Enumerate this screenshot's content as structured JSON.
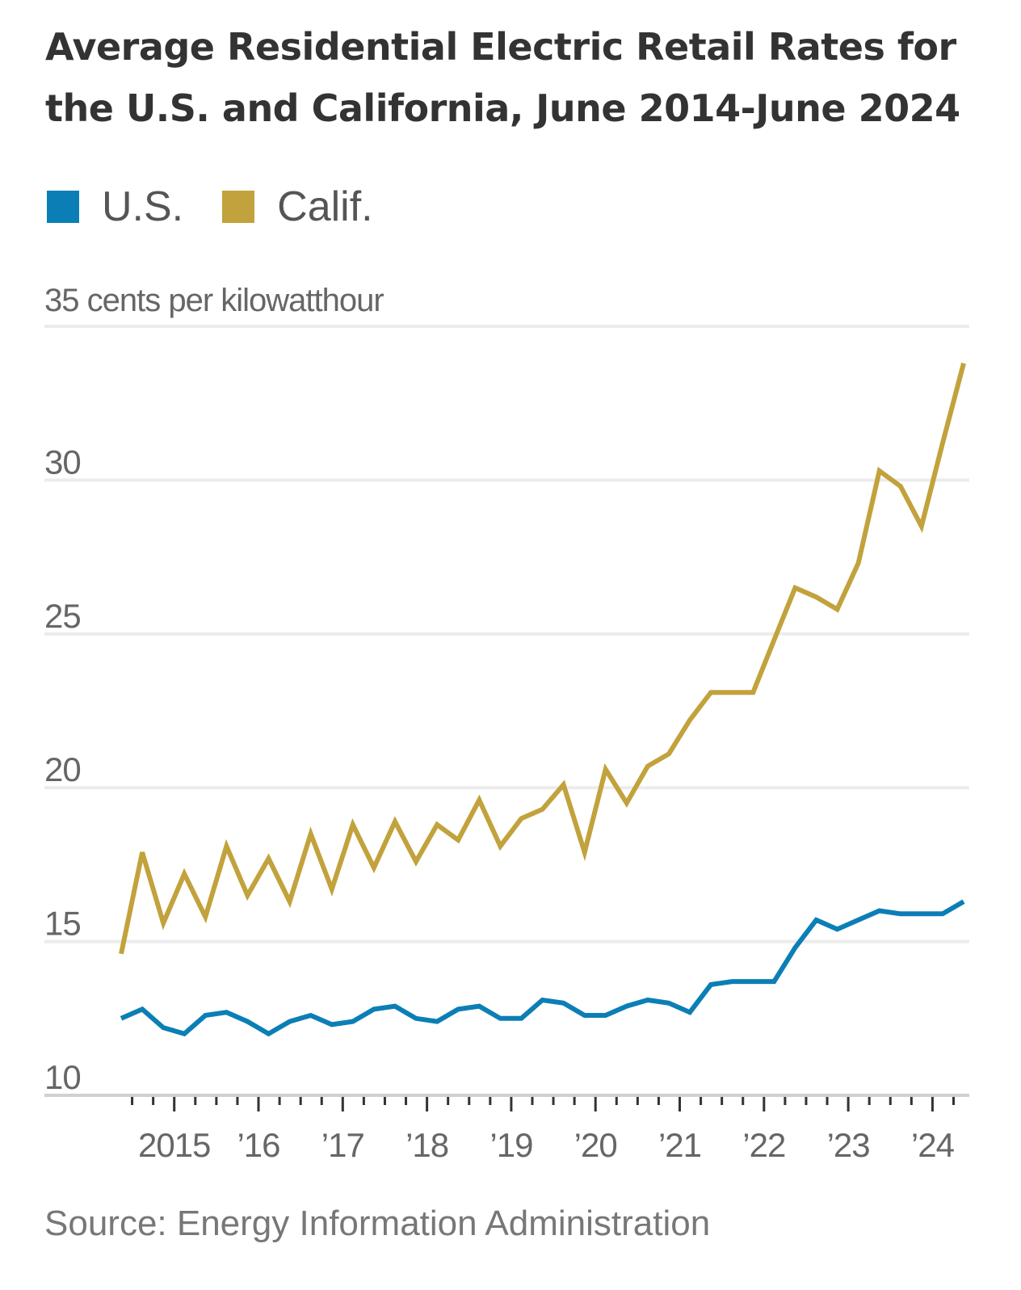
{
  "title": "Average Residential Electric Retail Rates for the U.S. and California, June 2014-June 2024",
  "source": "Source: Energy Information Administration",
  "chart_data": {
    "type": "line",
    "ylabel": "35 cents per kilowatthour",
    "ylim": [
      10,
      35
    ],
    "yticks": [
      10,
      15,
      20,
      25,
      30,
      35
    ],
    "ytick_labels": [
      "10",
      "15",
      "20",
      "25",
      "30",
      ""
    ],
    "xlim": [
      2014.37,
      2024.37
    ],
    "xticks": [
      2015,
      2016,
      2017,
      2018,
      2019,
      2020,
      2021,
      2022,
      2023,
      2024
    ],
    "xtick_labels": [
      "2015",
      "’16",
      "’17",
      "’18",
      "’19",
      "’20",
      "’21",
      "’22",
      "’23",
      "’24"
    ],
    "grid": true,
    "legend": "top-left",
    "x": [
      2014.37,
      2014.62,
      2014.87,
      2015.12,
      2015.37,
      2015.62,
      2015.87,
      2016.12,
      2016.37,
      2016.62,
      2016.87,
      2017.12,
      2017.37,
      2017.62,
      2017.87,
      2018.12,
      2018.37,
      2018.62,
      2018.87,
      2019.12,
      2019.37,
      2019.62,
      2019.87,
      2020.12,
      2020.37,
      2020.62,
      2020.87,
      2021.12,
      2021.37,
      2021.62,
      2021.87,
      2022.12,
      2022.37,
      2022.62,
      2022.87,
      2023.12,
      2023.37,
      2023.62,
      2023.87,
      2024.12,
      2024.37
    ],
    "series": [
      {
        "name": "U.S.",
        "color": "#0b7fb5",
        "values": [
          12.5,
          12.8,
          12.2,
          12.0,
          12.6,
          12.7,
          12.4,
          12.0,
          12.4,
          12.6,
          12.3,
          12.4,
          12.8,
          12.9,
          12.5,
          12.4,
          12.8,
          12.9,
          12.5,
          12.5,
          13.1,
          13.0,
          12.6,
          12.6,
          12.9,
          13.1,
          13.0,
          12.7,
          13.6,
          13.7,
          13.7,
          13.7,
          14.8,
          15.7,
          15.4,
          15.7,
          16.0,
          15.9,
          15.9,
          15.9,
          16.3
        ]
      },
      {
        "name": "Calif.",
        "color": "#c2a23c",
        "values": [
          14.6,
          17.9,
          15.6,
          17.2,
          15.8,
          18.1,
          16.5,
          17.7,
          16.3,
          18.5,
          16.7,
          18.8,
          17.4,
          18.9,
          17.6,
          18.8,
          18.3,
          19.6,
          18.1,
          19.0,
          19.3,
          20.1,
          17.9,
          20.6,
          19.5,
          20.7,
          21.1,
          22.2,
          23.1,
          23.1,
          23.1,
          24.8,
          26.5,
          26.2,
          25.8,
          27.3,
          30.3,
          29.8,
          28.5,
          31.2,
          33.8
        ]
      }
    ]
  }
}
